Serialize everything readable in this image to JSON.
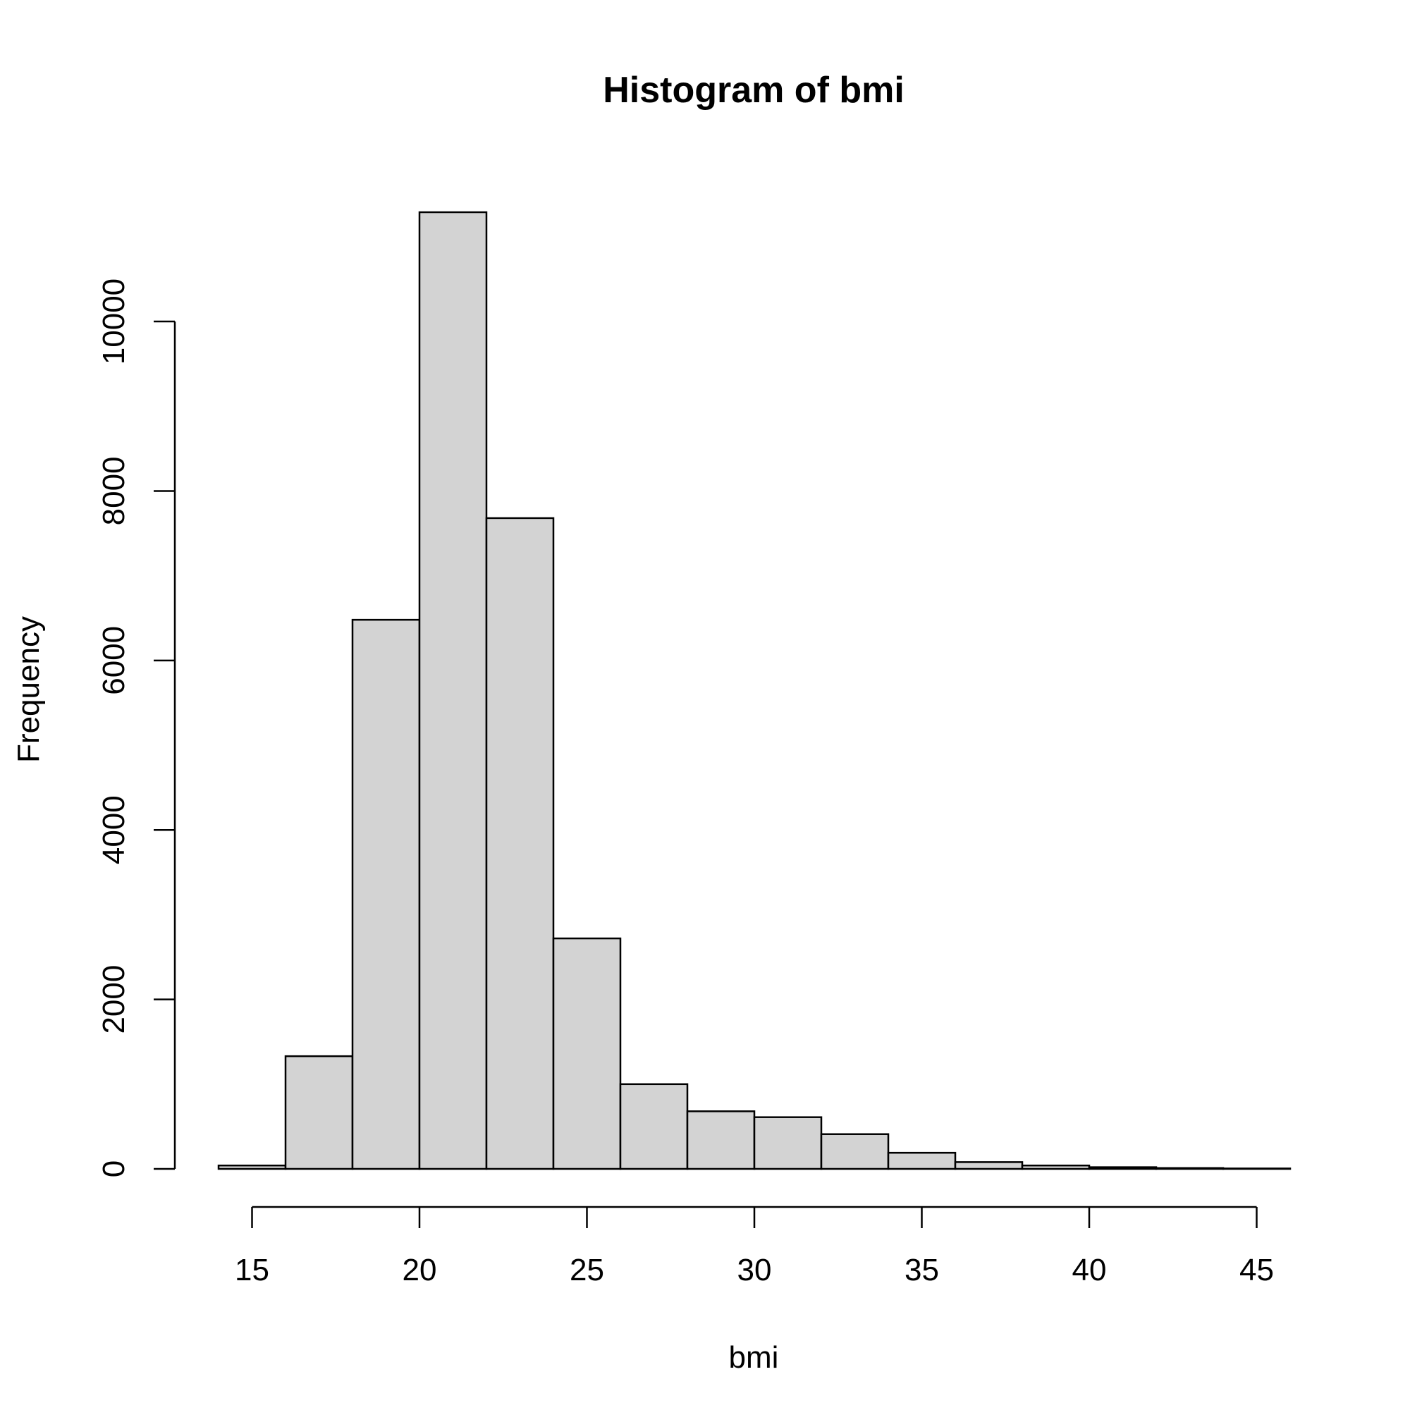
{
  "chart_data": {
    "type": "bar",
    "title": "Histogram of bmi",
    "xlabel": "bmi",
    "ylabel": "Frequency",
    "bin_edges": [
      14,
      16,
      18,
      20,
      22,
      24,
      26,
      28,
      30,
      32,
      34,
      36,
      38,
      40,
      42,
      44,
      46
    ],
    "values": [
      40,
      1330,
      6480,
      11290,
      7680,
      2720,
      1000,
      680,
      610,
      410,
      190,
      80,
      40,
      20,
      10,
      5
    ],
    "xlim": [
      14,
      46
    ],
    "ylim": [
      0,
      11290
    ],
    "x_ticks": [
      15,
      20,
      25,
      30,
      35,
      40,
      45
    ],
    "x_tick_labels": [
      "15",
      "20",
      "25",
      "30",
      "35",
      "40",
      "45"
    ],
    "y_ticks": [
      0,
      2000,
      4000,
      6000,
      8000,
      10000
    ],
    "y_tick_labels": [
      "0",
      "2000",
      "4000",
      "6000",
      "8000",
      "10000"
    ],
    "bar_color": "#d3d3d3",
    "grid": false,
    "legend": "none"
  }
}
